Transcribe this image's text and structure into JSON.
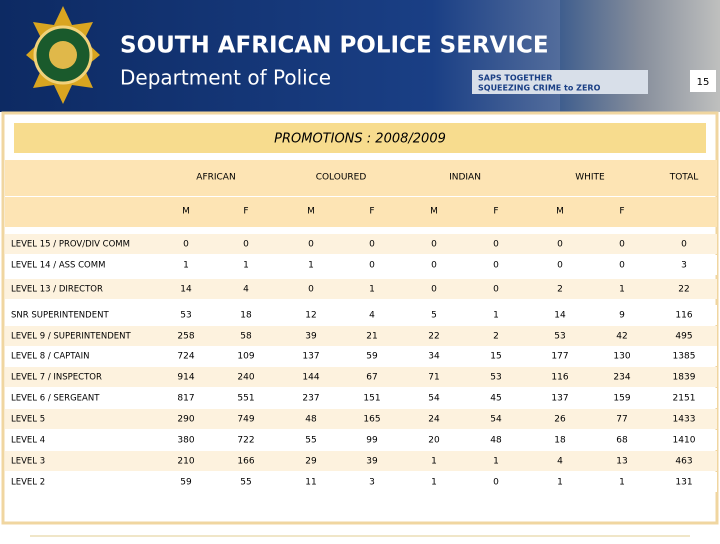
{
  "header": {
    "title": "SOUTH AFRICAN POLICE SERVICE",
    "subtitle": "Department of Police",
    "slogan": [
      "SAPS TOGETHER",
      "SQUEEZING CRIME to ZERO"
    ],
    "page_number": "15"
  },
  "title": "PROMOTIONS : 2008/2009",
  "table": {
    "groups": [
      "AFRICAN",
      "COLOURED",
      "INDIAN",
      "WHITE",
      "TOTAL"
    ],
    "subheaders": [
      "M",
      "F",
      "M",
      "F",
      "M",
      "F",
      "M",
      "F"
    ],
    "rows": [
      [
        "LEVEL 15 / PROV/DIV COMM",
        0,
        0,
        0,
        0,
        0,
        0,
        0,
        0,
        0
      ],
      [
        "LEVEL 14 / ASS COMM",
        1,
        1,
        1,
        0,
        0,
        0,
        0,
        0,
        3
      ],
      [
        "LEVEL 13 / DIRECTOR",
        14,
        4,
        0,
        1,
        0,
        0,
        2,
        1,
        22
      ],
      [
        "SNR SUPERINTENDENT",
        53,
        18,
        12,
        4,
        5,
        1,
        14,
        9,
        116
      ],
      [
        "LEVEL 9 / SUPERINTENDENT",
        258,
        58,
        39,
        21,
        22,
        2,
        53,
        42,
        495
      ],
      [
        "LEVEL 8 / CAPTAIN",
        724,
        109,
        137,
        59,
        34,
        15,
        177,
        130,
        1385
      ],
      [
        "LEVEL 7 / INSPECTOR",
        914,
        240,
        144,
        67,
        71,
        53,
        116,
        234,
        1839
      ],
      [
        "LEVEL 6 / SERGEANT",
        817,
        551,
        237,
        151,
        54,
        45,
        137,
        159,
        2151
      ],
      [
        "LEVEL 5",
        290,
        749,
        48,
        165,
        24,
        54,
        26,
        77,
        1433
      ],
      [
        "LEVEL 4",
        380,
        722,
        55,
        99,
        20,
        48,
        18,
        68,
        1410
      ],
      [
        "LEVEL 3",
        210,
        166,
        29,
        39,
        1,
        1,
        4,
        13,
        463
      ],
      [
        "LEVEL 2",
        59,
        55,
        11,
        3,
        1,
        0,
        1,
        1,
        131
      ]
    ]
  }
}
